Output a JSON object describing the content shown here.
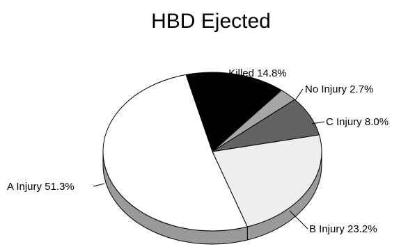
{
  "chart_data": {
    "type": "pie",
    "title": "HBD Ejected",
    "style": "3d",
    "series": [
      {
        "label": "Killed",
        "value": 14.8,
        "display": "Killed  14.8%",
        "color": "#000000"
      },
      {
        "label": "No Injury",
        "value": 2.7,
        "display": "No Injury  2.7%",
        "color": "#a6a6a6"
      },
      {
        "label": "C Injury",
        "value": 8.0,
        "display": "C Injury  8.0%",
        "color": "#636363"
      },
      {
        "label": "B Injury",
        "value": 23.2,
        "display": "B Injury  23.2%",
        "color": "#eeeeee"
      },
      {
        "label": "A Injury",
        "value": 51.3,
        "display": "A Injury  51.3%",
        "color": "#ffffff"
      }
    ],
    "side_color": "#9a9a9a"
  }
}
